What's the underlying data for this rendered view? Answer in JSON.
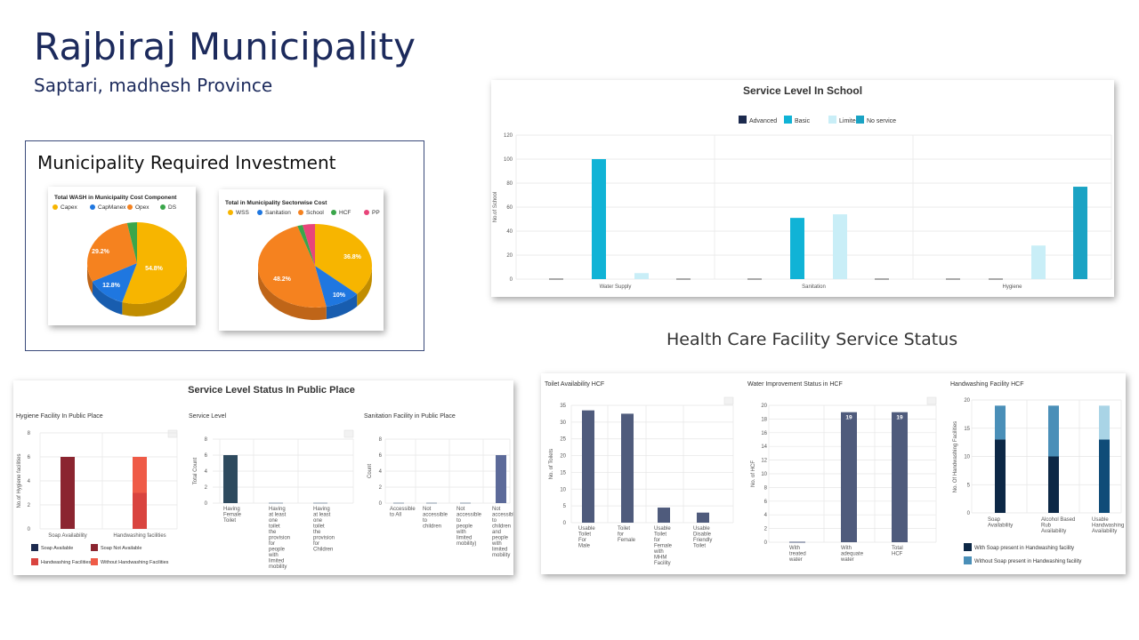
{
  "header": {
    "title": "Rajbiraj Municipality",
    "subtitle": "Saptari, madhesh Province"
  },
  "investment": {
    "title": "Municipality Required Investment"
  },
  "hcf_section_title": "Health Care Facility Service Status",
  "chart_data": [
    {
      "id": "wash-cost-component",
      "type": "pie",
      "title": "Total WASH in Municipality Cost Component",
      "categories": [
        "Capex",
        "CapManex",
        "Opex",
        "DS"
      ],
      "values": [
        54.8,
        12.8,
        29.2,
        3.2
      ],
      "labels": [
        "54.8%",
        "12.8%",
        "29.2%",
        ""
      ],
      "colors": [
        "#f7b500",
        "#1f77e0",
        "#f5821f",
        "#3aa64a"
      ],
      "legend": "top"
    },
    {
      "id": "sectorwise-cost",
      "type": "pie",
      "title": "Total in Municipality Sectorwise Cost",
      "categories": [
        "WSS",
        "Sanitation",
        "School",
        "HCF",
        "PP"
      ],
      "values": [
        36.8,
        10,
        48.2,
        1.5,
        3.5
      ],
      "labels": [
        "36.8%",
        "10%",
        "48.2%",
        "",
        ""
      ],
      "colors": [
        "#f7b500",
        "#1f77e0",
        "#f5821f",
        "#3aa64a",
        "#e8457a"
      ],
      "legend": "top"
    },
    {
      "id": "school-service",
      "type": "bar",
      "title": "Service Level In School",
      "categories": [
        "Water Supply",
        "Sanitation",
        "Hygiene"
      ],
      "series": [
        {
          "name": "Advanced",
          "values": [
            0,
            0,
            0
          ],
          "color": "#1c2a4e"
        },
        {
          "name": "Basic",
          "values": [
            100,
            51,
            0
          ],
          "color": "#10b3d6"
        },
        {
          "name": "Limited",
          "values": [
            5,
            54,
            28
          ],
          "color": "#c9eef7"
        },
        {
          "name": "No service",
          "values": [
            0,
            0,
            77
          ],
          "color": "#1aa3c4"
        }
      ],
      "ylabel": "No.of School",
      "ylim": [
        0,
        120
      ],
      "yticks": [
        0,
        20,
        40,
        60,
        80,
        100,
        120
      ],
      "legend": "top"
    },
    {
      "id": "hygiene-public",
      "type": "bar",
      "title": "Hygiene Facility In Public Place",
      "categories": [
        "Soap Availability",
        "Handwashing facilities"
      ],
      "series": [
        {
          "name": "Soap Available",
          "values": [
            0,
            0
          ],
          "color": "#1c2a4e"
        },
        {
          "name": "Soap Not Available",
          "values": [
            6,
            0
          ],
          "color": "#8b2530"
        },
        {
          "name": "Handwashing Facilities",
          "values": [
            0,
            3
          ],
          "color": "#d9443f"
        },
        {
          "name": "Without Handwashing Facilities",
          "values": [
            0,
            3
          ],
          "color": "#ef5b47"
        }
      ],
      "ylabel": "No.of Hygiene facilities",
      "ylim": [
        0,
        8
      ],
      "yticks": [
        0,
        2,
        4,
        6,
        8
      ],
      "legend": "bottom"
    },
    {
      "id": "service-level-public",
      "type": "bar",
      "title": "Service Level",
      "categories": [
        "Having Female Toilet",
        "Having at least one toilet the provision for people with limited mobility",
        "Having at least one toilet the provision for Children"
      ],
      "series": [
        {
          "name": "",
          "values": [
            6,
            0,
            0
          ],
          "color": "#2e4a5e"
        }
      ],
      "ylabel": "Total Count",
      "ylim": [
        0,
        8
      ],
      "yticks": [
        0,
        2,
        4,
        6,
        8
      ]
    },
    {
      "id": "sanitation-public",
      "type": "bar",
      "title": "Sanitation Facility in Public Place",
      "categories": [
        "Accessible to All",
        "Not accessible to children",
        "Not accessible to people with limited mobility)",
        "Not accessible to children and people with limited mobility"
      ],
      "series": [
        {
          "name": "",
          "values": [
            0,
            0,
            0,
            6
          ],
          "color": "#5c6a99"
        }
      ],
      "ylabel": "Count",
      "ylim": [
        0,
        8
      ],
      "yticks": [
        0,
        2,
        4,
        6,
        8
      ]
    },
    {
      "id": "toilet-hcf",
      "type": "bar",
      "title": "Toilet Availability HCF",
      "categories": [
        "Usable Toilet For Male",
        "Toilet for Female",
        "Usable Toilet for Female with MHM Facility",
        "Usable Disable Friendly Toilet"
      ],
      "series": [
        {
          "name": "",
          "values": [
            33.5,
            32.5,
            4.5,
            3
          ],
          "color": "#4f5b7c"
        }
      ],
      "ylabel": "No. of Toilets",
      "ylim": [
        0,
        35
      ],
      "yticks": [
        0,
        5,
        10,
        15,
        20,
        25,
        30,
        35
      ]
    },
    {
      "id": "water-hcf",
      "type": "bar",
      "title": "Water Improvement Status in HCF",
      "categories": [
        "With treated water",
        "With adequate water",
        "Total HCF"
      ],
      "series": [
        {
          "name": "",
          "values": [
            0,
            19,
            19
          ],
          "color": "#4f5b7c"
        }
      ],
      "data_labels": [
        "",
        "19",
        "19"
      ],
      "ylabel": "No. of HCF",
      "ylim": [
        0,
        20
      ],
      "yticks": [
        0,
        2,
        4,
        6,
        8,
        10,
        12,
        14,
        16,
        18,
        20
      ]
    },
    {
      "id": "handwash-hcf",
      "type": "bar",
      "stacked": true,
      "title": "Handwashing Facility HCF",
      "categories": [
        "Soap Availability",
        "Alcohol Based Rub Availability",
        "Usable Handwashing Availability"
      ],
      "series": [
        {
          "name": "With Soap present in Handwashing facility",
          "values": [
            13,
            10,
            13
          ],
          "colors": [
            "#0d2846",
            "#0d2846",
            "#0f4c78"
          ]
        },
        {
          "name": "Without Soap present in Handwashing facility",
          "values": [
            6,
            9,
            6
          ],
          "colors": [
            "#4a8fb8",
            "#4a8fb8",
            "#a9d4e6"
          ]
        }
      ],
      "ylabel": "No. Of Handwashing Facilities",
      "ylim": [
        0,
        20
      ],
      "yticks": [
        0,
        5,
        10,
        15,
        20
      ],
      "legend": "bottom"
    }
  ]
}
